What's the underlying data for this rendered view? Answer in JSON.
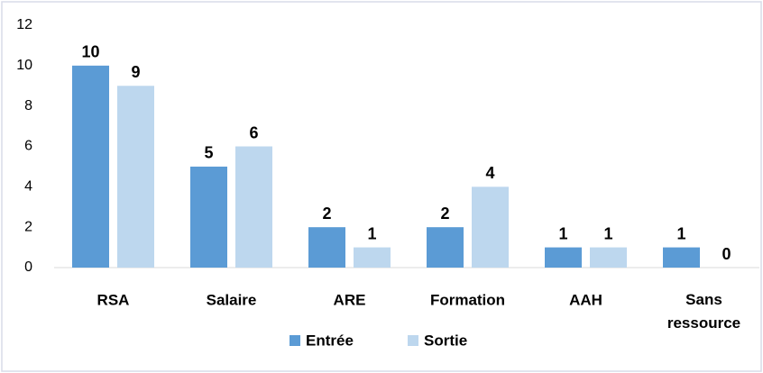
{
  "chart_data": {
    "type": "bar",
    "categories": [
      "RSA",
      "Salaire",
      "ARE",
      "Formation",
      "AAH",
      "Sans ressource"
    ],
    "series": [
      {
        "name": "Entrée",
        "color": "#5b9bd5",
        "values": [
          10,
          5,
          2,
          2,
          1,
          1
        ]
      },
      {
        "name": "Sortie",
        "color": "#bdd7ee",
        "values": [
          9,
          6,
          1,
          4,
          1,
          0
        ]
      }
    ],
    "ylim": [
      0,
      12
    ],
    "yticks": [
      0,
      2,
      4,
      6,
      8,
      10,
      12
    ],
    "grid": false,
    "legend": "bottom"
  }
}
